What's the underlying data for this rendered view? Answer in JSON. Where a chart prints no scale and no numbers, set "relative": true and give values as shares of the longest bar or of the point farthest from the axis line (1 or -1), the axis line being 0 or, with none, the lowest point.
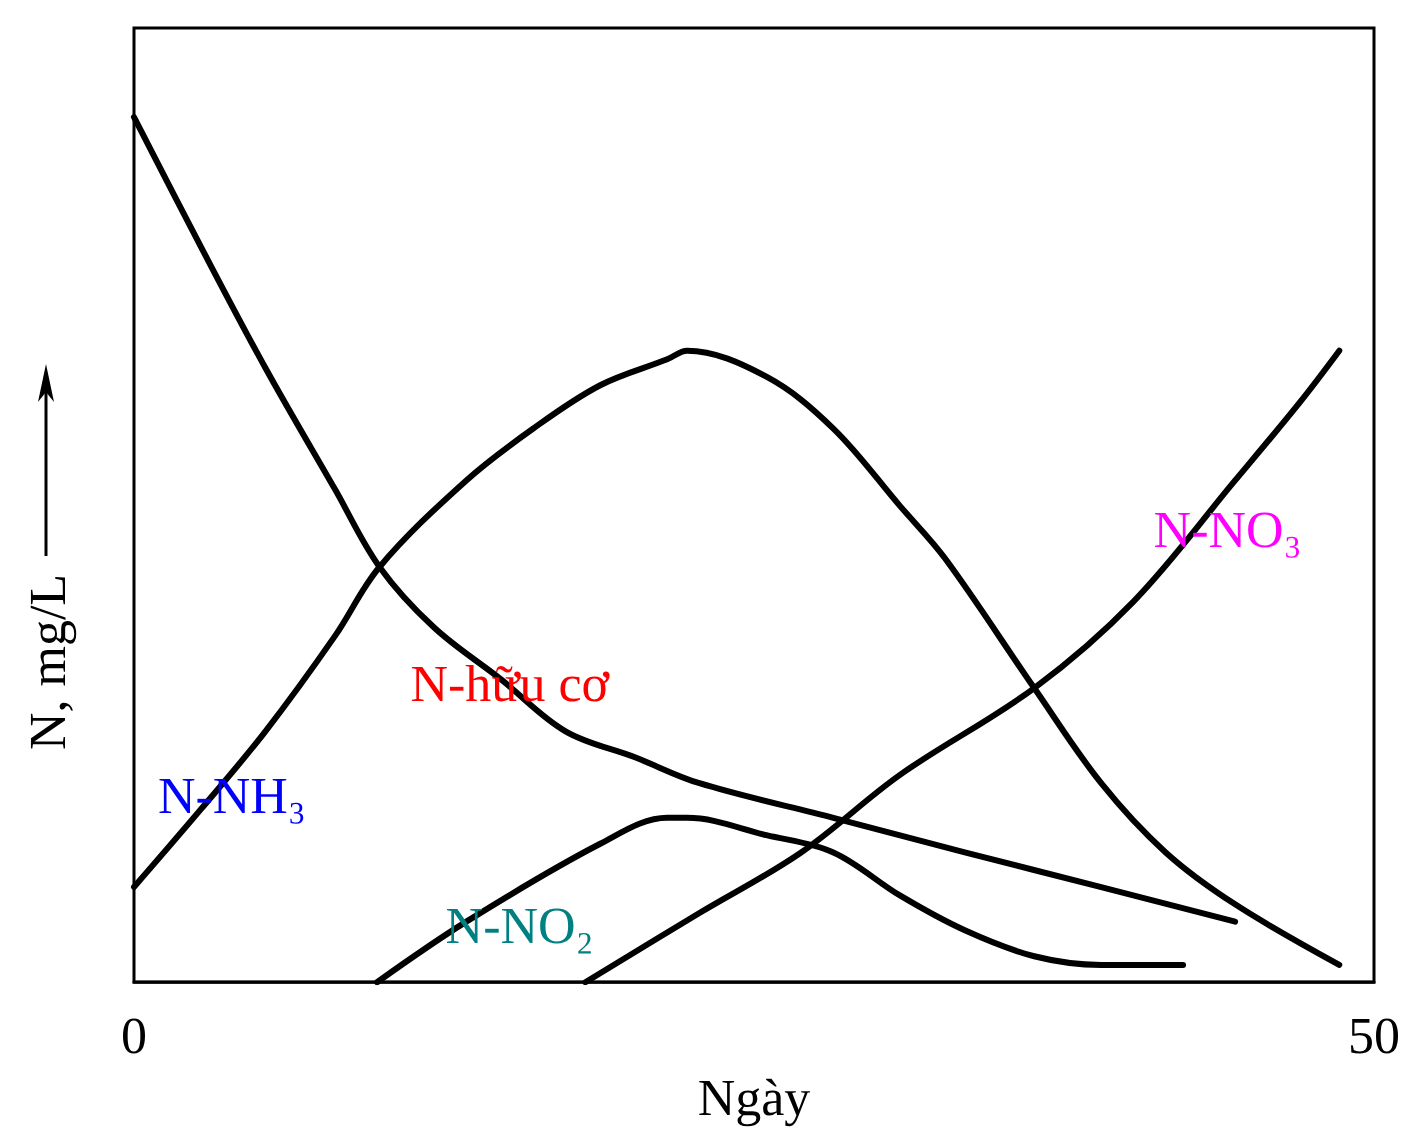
{
  "chart_data": {
    "type": "line",
    "xlabel": "Ngày",
    "ylabel": "N, mg/L",
    "xlim": [
      0,
      50
    ],
    "xticks": [
      0,
      50
    ],
    "relative": true,
    "grid": false,
    "legend": false,
    "marker": "none",
    "line_style": "solid",
    "series": [
      {
        "name": "N-hữu cơ",
        "color": "#000000",
        "x": [
          0,
          2.7,
          5.3,
          8.1,
          9.9,
          12.1,
          14.8,
          17.4,
          20.2,
          22.8,
          28.2,
          33.5,
          39.0,
          44.4
        ],
        "values": [
          1,
          0.85,
          0.71,
          0.57,
          0.48,
          0.41,
          0.35,
          0.29,
          0.26,
          0.23,
          0.19,
          0.15,
          0.11,
          0.07
        ]
      },
      {
        "name": "N-NH₃",
        "color": "#000000",
        "x": [
          0,
          2.7,
          5.3,
          8.1,
          9.9,
          13.4,
          16.1,
          18.8,
          21.5,
          22.3,
          25.5,
          28.2,
          30.9,
          32.7,
          36.3,
          39.0,
          41.6,
          44.4,
          48.6
        ],
        "values": [
          0.11,
          0.2,
          0.29,
          0.4,
          0.48,
          0.58,
          0.64,
          0.69,
          0.72,
          0.73,
          0.7,
          0.64,
          0.55,
          0.49,
          0.34,
          0.23,
          0.15,
          0.09,
          0.02
        ]
      },
      {
        "name": "N-NO₂",
        "color": "#000000",
        "x": [
          9.8,
          13.4,
          18.8,
          21.5,
          22.3,
          25.5,
          28.2,
          30.9,
          33.5,
          36.3,
          39.0,
          42.3
        ],
        "values": [
          0,
          0.07,
          0.16,
          0.19,
          0.19,
          0.17,
          0.15,
          0.1,
          0.06,
          0.03,
          0.02,
          0.02
        ]
      },
      {
        "name": "N-NO₃",
        "color": "#000000",
        "x": [
          18.2,
          22.8,
          26.9,
          30.9,
          36.3,
          40.3,
          44.4,
          47.0,
          48.6
        ],
        "values": [
          0,
          0.08,
          0.15,
          0.24,
          0.34,
          0.44,
          0.58,
          0.67,
          0.73
        ]
      }
    ]
  }
}
